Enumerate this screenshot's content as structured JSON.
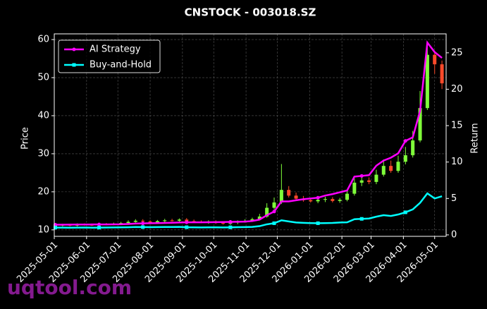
{
  "chart_data": {
    "type": "candlestick",
    "title": "CNSTOCK - 003018.SZ",
    "ylabel": "Price",
    "y2label": "Return",
    "watermark": "uqtool.com",
    "x": [
      "2025-05-02",
      "2025-05-09",
      "2025-05-16",
      "2025-05-23",
      "2025-05-30",
      "2025-06-06",
      "2025-06-13",
      "2025-06-20",
      "2025-06-27",
      "2025-07-04",
      "2025-07-11",
      "2025-07-18",
      "2025-07-25",
      "2025-08-01",
      "2025-08-08",
      "2025-08-15",
      "2025-08-22",
      "2025-08-29",
      "2025-09-05",
      "2025-09-12",
      "2025-09-19",
      "2025-09-26",
      "2025-10-03",
      "2025-10-10",
      "2025-10-17",
      "2025-10-24",
      "2025-10-31",
      "2025-11-07",
      "2025-11-14",
      "2025-11-21",
      "2025-11-28",
      "2025-12-05",
      "2025-12-12",
      "2025-12-19",
      "2025-12-26",
      "2026-01-02",
      "2026-01-09",
      "2026-01-16",
      "2026-01-23",
      "2026-01-30",
      "2026-02-06",
      "2026-02-13",
      "2026-02-20",
      "2026-02-27",
      "2026-03-06",
      "2026-03-13",
      "2026-03-20",
      "2026-03-27",
      "2026-04-03",
      "2026-04-10",
      "2026-04-17",
      "2026-04-24",
      "2026-05-01",
      "2026-05-08"
    ],
    "open": [
      11.0,
      11.2,
      11.3,
      11.1,
      11.4,
      11.3,
      11.2,
      11.5,
      11.4,
      11.6,
      11.8,
      12.1,
      12.4,
      12.2,
      12.0,
      12.3,
      12.5,
      12.4,
      12.7,
      12.3,
      12.1,
      11.9,
      12.2,
      11.8,
      11.6,
      11.9,
      12.2,
      12.4,
      12.8,
      13.5,
      15.8,
      17.2,
      20.5,
      19.0,
      18.2,
      17.8,
      17.5,
      17.9,
      18.1,
      17.6,
      17.9,
      19.5,
      22.4,
      23.0,
      22.6,
      24.5,
      26.8,
      25.5,
      27.9,
      29.6,
      33.5,
      42.0,
      56.0,
      53.5
    ],
    "high": [
      11.5,
      11.6,
      11.6,
      11.7,
      11.7,
      11.6,
      11.8,
      11.8,
      11.9,
      12.1,
      12.5,
      12.8,
      12.8,
      12.5,
      12.6,
      12.9,
      12.9,
      13.0,
      13.1,
      12.7,
      12.5,
      12.5,
      12.5,
      12.1,
      12.2,
      12.5,
      12.8,
      13.2,
      14.2,
      17.0,
      18.5,
      27.3,
      21.5,
      19.8,
      18.9,
      18.4,
      18.5,
      18.7,
      18.6,
      18.4,
      20.3,
      23.5,
      24.2,
      23.8,
      25.8,
      28.5,
      28.2,
      29.5,
      31.8,
      36.0,
      46.5,
      58.5,
      57.0,
      54.5
    ],
    "low": [
      10.8,
      10.9,
      10.9,
      10.9,
      11.1,
      11.0,
      11.0,
      11.2,
      11.2,
      11.4,
      11.6,
      11.9,
      12.0,
      11.8,
      11.8,
      12.0,
      12.2,
      12.1,
      12.1,
      11.9,
      11.8,
      11.6,
      11.6,
      11.4,
      11.3,
      11.5,
      11.9,
      12.1,
      12.5,
      13.2,
      15.4,
      16.8,
      18.5,
      18.0,
      17.4,
      17.2,
      17.0,
      17.3,
      17.2,
      17.1,
      17.5,
      19.0,
      21.5,
      22.0,
      22.0,
      24.0,
      25.0,
      25.0,
      27.2,
      29.0,
      33.0,
      41.5,
      51.0,
      47.0
    ],
    "close": [
      11.2,
      11.3,
      11.1,
      11.4,
      11.3,
      11.2,
      11.5,
      11.4,
      11.6,
      11.8,
      12.1,
      12.4,
      12.2,
      12.0,
      12.3,
      12.5,
      12.4,
      12.7,
      12.3,
      12.1,
      11.9,
      12.2,
      11.8,
      11.6,
      11.9,
      12.2,
      12.4,
      12.8,
      13.5,
      15.8,
      17.2,
      20.5,
      19.0,
      18.2,
      17.8,
      17.5,
      17.9,
      18.1,
      17.6,
      17.9,
      19.5,
      22.4,
      23.0,
      22.6,
      24.5,
      26.8,
      25.5,
      27.9,
      29.6,
      33.5,
      42.0,
      56.0,
      53.5,
      48.5
    ],
    "up_color": "#7fff3a",
    "down_color": "#ff4a2a",
    "series": [
      {
        "name": "AI Strategy",
        "color": "#ff00ff",
        "marker": "circle",
        "axis": "y2",
        "values": [
          1.4,
          1.4,
          1.41,
          1.42,
          1.42,
          1.43,
          1.43,
          1.44,
          1.45,
          1.46,
          1.5,
          1.55,
          1.58,
          1.6,
          1.62,
          1.64,
          1.66,
          1.7,
          1.72,
          1.72,
          1.73,
          1.74,
          1.75,
          1.76,
          1.78,
          1.8,
          1.82,
          1.9,
          2.1,
          2.7,
          3.2,
          4.6,
          4.6,
          4.75,
          4.9,
          5.0,
          5.1,
          5.4,
          5.6,
          5.85,
          6.1,
          8.0,
          8.1,
          8.2,
          9.5,
          10.2,
          10.6,
          11.2,
          12.9,
          13.4,
          17.0,
          26.4,
          25.1,
          24.3
        ]
      },
      {
        "name": "Buy-and-Hold",
        "color": "#00ffff",
        "marker": "square",
        "axis": "y2",
        "values": [
          1.0,
          1.0,
          0.99,
          1.0,
          1.01,
          0.99,
          1.0,
          1.01,
          1.02,
          1.03,
          1.05,
          1.08,
          1.07,
          1.06,
          1.07,
          1.08,
          1.08,
          1.09,
          1.05,
          1.04,
          1.02,
          1.04,
          1.03,
          1.02,
          1.04,
          1.06,
          1.07,
          1.1,
          1.2,
          1.45,
          1.6,
          2.0,
          1.85,
          1.7,
          1.65,
          1.62,
          1.6,
          1.62,
          1.64,
          1.7,
          1.72,
          2.15,
          2.2,
          2.25,
          2.5,
          2.7,
          2.6,
          2.8,
          3.1,
          3.5,
          4.4,
          5.7,
          5.0,
          5.3
        ]
      }
    ],
    "xlim": [
      "2025-05-01",
      "2026-05-12"
    ],
    "xticks": [
      "2025-05-01",
      "2025-06-01",
      "2025-07-01",
      "2025-08-01",
      "2025-09-01",
      "2025-10-01",
      "2025-11-01",
      "2025-12-01",
      "2026-01-01",
      "2026-02-01",
      "2026-03-01",
      "2026-04-01",
      "2026-05-01"
    ],
    "ylim": [
      8.3,
      61.5
    ],
    "yticks": [
      10,
      20,
      30,
      40,
      50,
      60
    ],
    "y2lim": [
      -0.2,
      27.6
    ],
    "y2ticks": [
      0,
      5,
      10,
      15,
      20,
      25
    ],
    "grid": true,
    "legend": "upper left"
  }
}
